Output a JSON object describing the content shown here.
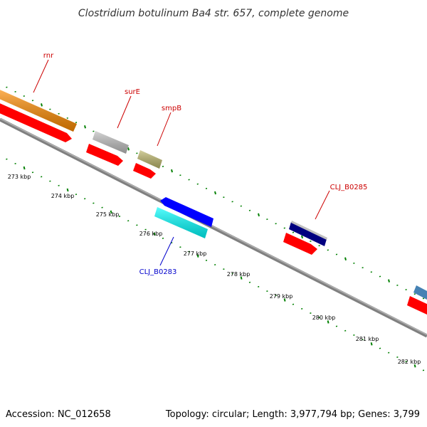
{
  "title": "Clostridium botulinum Ba4 str. 657, complete genome",
  "accession": "Accession: NC_012658",
  "summary": "Topology: circular; Length: 3,977,794 bp; Genes: 3,799",
  "kbp_ticks": [
    "273 kbp",
    "274 kbp",
    "275 kbp",
    "276 kbp",
    "277 kbp",
    "278 kbp",
    "279 kbp",
    "280 kbp",
    "281 kbp",
    "282 kbp"
  ],
  "genes": [
    {
      "name": "rnr",
      "label_color": "#cc0000",
      "fill": "#ff8c00",
      "strand": "forward"
    },
    {
      "name": "surE",
      "label_color": "#cc0000",
      "fill": "#c0c0c0",
      "strand": "forward"
    },
    {
      "name": "smpB",
      "label_color": "#cc0000",
      "fill": "#bdb76b",
      "strand": "forward"
    },
    {
      "name": "CLJ_B0283",
      "label_color": "#0000cc",
      "fill": "#00ffff",
      "strand": "reverse"
    },
    {
      "name": "CLJ_B0285",
      "label_color": "#cc0000",
      "fill": "#000080",
      "strand": "forward"
    }
  ],
  "colors": {
    "backbone": "#808080",
    "tick": "#008000",
    "cds": "#ff0000",
    "reverse_gene": "#0000ff",
    "partial_gene": "#4682b4"
  }
}
